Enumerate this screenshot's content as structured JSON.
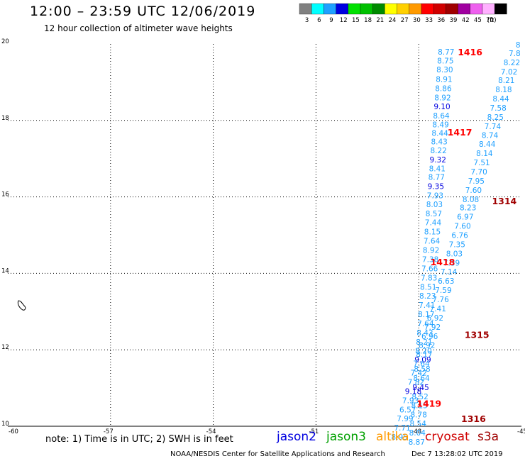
{
  "header": {
    "title": "12:00 – 23:59 UTC 12/06/2019",
    "subtitle": "12 hour collection of altimeter wave heights"
  },
  "legend": {
    "unit": "(ft)",
    "bins": [
      {
        "label": "3",
        "color": "#808080"
      },
      {
        "label": "6",
        "color": "#00ffff"
      },
      {
        "label": "9",
        "color": "#1fa0ff"
      },
      {
        "label": "12",
        "color": "#0000e0"
      },
      {
        "label": "15",
        "color": "#00e000"
      },
      {
        "label": "18",
        "color": "#00c000"
      },
      {
        "label": "21",
        "color": "#008a00"
      },
      {
        "label": "24",
        "color": "#ffff00"
      },
      {
        "label": "27",
        "color": "#ffd000"
      },
      {
        "label": "30",
        "color": "#ff9a00"
      },
      {
        "label": "33",
        "color": "#ff0000"
      },
      {
        "label": "36",
        "color": "#d00000"
      },
      {
        "label": "39",
        "color": "#a00000"
      },
      {
        "label": "42",
        "color": "#a000a0"
      },
      {
        "label": "45",
        "color": "#ee60ee"
      },
      {
        "label": "70",
        "color": "#ffb0ff"
      },
      {
        "label": "",
        "color": "#000000"
      }
    ]
  },
  "footer": {
    "note": "note: 1) Time is in UTC; 2) SWH is in feet",
    "satellites": [
      {
        "name": "jason2",
        "color": "#0000e0"
      },
      {
        "name": "jason3",
        "color": "#00a000"
      },
      {
        "name": "altika",
        "color": "#ff9a00"
      },
      {
        "name": "cryosat",
        "color": "#d00000"
      },
      {
        "name": "s3a",
        "color": "#a00000"
      }
    ],
    "credit": "NOAA/NESDIS Center for Satellite Applications and Research",
    "generated": "Dec  7 13:28:02 UTC 2019"
  },
  "chart_data": {
    "type": "scatter",
    "xlim": [
      -60,
      -45
    ],
    "ylim": [
      10,
      20
    ],
    "x_ticks": [
      "-60",
      "-57",
      "-54",
      "-51",
      "-48",
      "-45"
    ],
    "y_ticks": [
      "10",
      "12",
      "14",
      "16",
      "18",
      "20"
    ],
    "grid": true,
    "colors": {
      "c9": "#1fa0ff",
      "c12": "#0000e0"
    },
    "track_labels": [
      {
        "text": "1416",
        "x": -46.5,
        "y": 19.8,
        "color": "#ff0000"
      },
      {
        "text": "1417",
        "x": -46.8,
        "y": 17.7,
        "color": "#ff0000"
      },
      {
        "text": "1418",
        "x": -47.3,
        "y": 14.3,
        "color": "#ff0000"
      },
      {
        "text": "1419",
        "x": -47.7,
        "y": 10.6,
        "color": "#ff0000"
      },
      {
        "text": "1314",
        "x": -45.5,
        "y": 15.9,
        "color": "#a00000"
      },
      {
        "text": "1315",
        "x": -46.3,
        "y": 12.4,
        "color": "#a00000"
      },
      {
        "text": "1316",
        "x": -46.4,
        "y": 10.2,
        "color": "#a00000"
      }
    ],
    "series": [
      {
        "name": "1416",
        "points": [
          {
            "x": -47.2,
            "y": 19.8,
            "v": "8.77",
            "c": "c9"
          },
          {
            "x": -47.22,
            "y": 19.56,
            "v": "8.75",
            "c": "c9"
          },
          {
            "x": -47.24,
            "y": 19.33,
            "v": "8.30",
            "c": "c9"
          },
          {
            "x": -47.26,
            "y": 19.08,
            "v": "8.91",
            "c": "c9"
          },
          {
            "x": -47.28,
            "y": 18.84,
            "v": "8.86",
            "c": "c9"
          },
          {
            "x": -47.3,
            "y": 18.6,
            "v": "8.92",
            "c": "c9"
          },
          {
            "x": -47.32,
            "y": 18.37,
            "v": "9.10",
            "c": "c12"
          },
          {
            "x": -47.34,
            "y": 18.13,
            "v": "8.64",
            "c": "c9"
          },
          {
            "x": -47.36,
            "y": 17.89,
            "v": "8.49",
            "c": "c9"
          }
        ]
      },
      {
        "name": "1417",
        "points": [
          {
            "x": -47.38,
            "y": 17.67,
            "v": "8.44",
            "c": "c9"
          },
          {
            "x": -47.4,
            "y": 17.45,
            "v": "8.43",
            "c": "c9"
          },
          {
            "x": -47.42,
            "y": 17.22,
            "v": "8.22",
            "c": "c9"
          },
          {
            "x": -47.44,
            "y": 16.98,
            "v": "9.32",
            "c": "c12"
          },
          {
            "x": -47.46,
            "y": 16.74,
            "v": "8.41",
            "c": "c9"
          },
          {
            "x": -47.48,
            "y": 16.52,
            "v": "8.77",
            "c": "c9"
          },
          {
            "x": -47.5,
            "y": 16.28,
            "v": "9.35",
            "c": "c12"
          },
          {
            "x": -47.52,
            "y": 16.04,
            "v": "7.93",
            "c": "c9"
          },
          {
            "x": -47.54,
            "y": 15.81,
            "v": "8.03",
            "c": "c9"
          },
          {
            "x": -47.56,
            "y": 15.57,
            "v": "8.57",
            "c": "c9"
          },
          {
            "x": -47.58,
            "y": 15.33,
            "v": "7.44",
            "c": "c9"
          },
          {
            "x": -47.6,
            "y": 15.09,
            "v": "8.15",
            "c": "c9"
          },
          {
            "x": -47.62,
            "y": 14.85,
            "v": "7.64",
            "c": "c9"
          },
          {
            "x": -47.64,
            "y": 14.61,
            "v": "8.92",
            "c": "c9"
          },
          {
            "x": -47.66,
            "y": 14.37,
            "v": "7.38",
            "c": "c9"
          },
          {
            "x": -47.68,
            "y": 14.13,
            "v": "7.66",
            "c": "c9"
          }
        ]
      },
      {
        "name": "1418",
        "points": [
          {
            "x": -47.7,
            "y": 13.89,
            "v": "7.83",
            "c": "c9"
          },
          {
            "x": -47.72,
            "y": 13.65,
            "v": "8.51",
            "c": "c9"
          },
          {
            "x": -47.74,
            "y": 13.41,
            "v": "8.23",
            "c": "c9"
          },
          {
            "x": -47.76,
            "y": 13.17,
            "v": "7.41",
            "c": "c9"
          },
          {
            "x": -47.78,
            "y": 12.93,
            "v": "8.17",
            "c": "c9"
          },
          {
            "x": -47.8,
            "y": 12.69,
            "v": "7.64",
            "c": "c9"
          },
          {
            "x": -47.82,
            "y": 12.45,
            "v": "8.43",
            "c": "c9"
          },
          {
            "x": -47.84,
            "y": 12.21,
            "v": "8.21",
            "c": "c9"
          },
          {
            "x": -47.86,
            "y": 11.98,
            "v": "8.20",
            "c": "c9"
          },
          {
            "x": -47.88,
            "y": 11.74,
            "v": "9.09",
            "c": "c12"
          },
          {
            "x": -47.9,
            "y": 11.5,
            "v": "8.58",
            "c": "c9"
          },
          {
            "x": -47.92,
            "y": 11.26,
            "v": "8.64",
            "c": "c9"
          },
          {
            "x": -47.94,
            "y": 11.02,
            "v": "9.45",
            "c": "c12"
          },
          {
            "x": -47.96,
            "y": 10.78,
            "v": "8.52",
            "c": "c9"
          },
          {
            "x": -47.98,
            "y": 10.55,
            "v": "8.15",
            "c": "c9"
          },
          {
            "x": -48.0,
            "y": 10.31,
            "v": "8.78",
            "c": "c9"
          },
          {
            "x": -48.02,
            "y": 10.07,
            "v": "8.54",
            "c": "c9"
          }
        ]
      },
      {
        "name": "1419",
        "points": [
          {
            "x": -48.04,
            "y": 9.83,
            "v": "8.04",
            "c": "c9"
          },
          {
            "x": -48.06,
            "y": 9.59,
            "v": "8.87",
            "c": "c9"
          }
        ]
      },
      {
        "name": "1314",
        "points": [
          {
            "x": -45.1,
            "y": 19.98,
            "v": "8",
            "c": "c9"
          },
          {
            "x": -45.2,
            "y": 19.76,
            "v": "7.8",
            "c": "c9"
          },
          {
            "x": -45.28,
            "y": 19.52,
            "v": "8.22",
            "c": "c9"
          },
          {
            "x": -45.36,
            "y": 19.28,
            "v": "7.02",
            "c": "c9"
          },
          {
            "x": -45.44,
            "y": 19.05,
            "v": "8.21",
            "c": "c9"
          },
          {
            "x": -45.52,
            "y": 18.81,
            "v": "8.18",
            "c": "c9"
          },
          {
            "x": -45.6,
            "y": 18.57,
            "v": "8.44",
            "c": "c9"
          },
          {
            "x": -45.68,
            "y": 18.33,
            "v": "7.58",
            "c": "c9"
          },
          {
            "x": -45.76,
            "y": 18.09,
            "v": "8.25",
            "c": "c9"
          },
          {
            "x": -45.84,
            "y": 17.85,
            "v": "7.74",
            "c": "c9"
          },
          {
            "x": -45.92,
            "y": 17.62,
            "v": "8.74",
            "c": "c9"
          },
          {
            "x": -46.0,
            "y": 17.38,
            "v": "8.44",
            "c": "c9"
          },
          {
            "x": -46.08,
            "y": 17.14,
            "v": "8.14",
            "c": "c9"
          },
          {
            "x": -46.16,
            "y": 16.9,
            "v": "7.51",
            "c": "c9"
          },
          {
            "x": -46.24,
            "y": 16.66,
            "v": "7.70",
            "c": "c9"
          },
          {
            "x": -46.32,
            "y": 16.42,
            "v": "7.95",
            "c": "c9"
          },
          {
            "x": -46.4,
            "y": 16.18,
            "v": "7.60",
            "c": "c9"
          },
          {
            "x": -46.48,
            "y": 15.94,
            "v": "8.08",
            "c": "c9"
          }
        ]
      },
      {
        "name": "1315",
        "points": [
          {
            "x": -46.56,
            "y": 15.72,
            "v": "8.23",
            "c": "c9"
          },
          {
            "x": -46.64,
            "y": 15.48,
            "v": "6.97",
            "c": "c9"
          },
          {
            "x": -46.72,
            "y": 15.24,
            "v": "7.60",
            "c": "c9"
          },
          {
            "x": -46.8,
            "y": 15.0,
            "v": "6.76",
            "c": "c9"
          },
          {
            "x": -46.88,
            "y": 14.76,
            "v": "7.35",
            "c": "c9"
          },
          {
            "x": -46.96,
            "y": 14.52,
            "v": "8.03",
            "c": "c9"
          },
          {
            "x": -47.04,
            "y": 14.28,
            "v": "7.39",
            "c": "c9"
          },
          {
            "x": -47.12,
            "y": 14.04,
            "v": "7.14",
            "c": "c9"
          },
          {
            "x": -47.2,
            "y": 13.8,
            "v": "6.63",
            "c": "c9"
          },
          {
            "x": -47.28,
            "y": 13.56,
            "v": "7.59",
            "c": "c9"
          },
          {
            "x": -47.36,
            "y": 13.32,
            "v": "7.76",
            "c": "c9"
          },
          {
            "x": -47.44,
            "y": 13.08,
            "v": "7.41",
            "c": "c9"
          },
          {
            "x": -47.52,
            "y": 12.84,
            "v": "6.92",
            "c": "c9"
          },
          {
            "x": -47.6,
            "y": 12.6,
            "v": "7.92",
            "c": "c9"
          },
          {
            "x": -47.68,
            "y": 12.36,
            "v": "6.96",
            "c": "c9"
          }
        ]
      },
      {
        "name": "1316",
        "points": [
          {
            "x": -47.76,
            "y": 12.12,
            "v": "8.92",
            "c": "c9"
          },
          {
            "x": -47.84,
            "y": 11.88,
            "v": "8.17",
            "c": "c9"
          },
          {
            "x": -47.92,
            "y": 11.64,
            "v": "7.64",
            "c": "c9"
          },
          {
            "x": -48.0,
            "y": 11.4,
            "v": "7.42",
            "c": "c9"
          },
          {
            "x": -48.08,
            "y": 11.16,
            "v": "7.82",
            "c": "c9"
          },
          {
            "x": -48.16,
            "y": 10.92,
            "v": "9.18",
            "c": "c12"
          },
          {
            "x": -48.24,
            "y": 10.68,
            "v": "7.93",
            "c": "c9"
          },
          {
            "x": -48.32,
            "y": 10.44,
            "v": "6.57",
            "c": "c9"
          },
          {
            "x": -48.4,
            "y": 10.2,
            "v": "7.99",
            "c": "c9"
          },
          {
            "x": -48.48,
            "y": 9.96,
            "v": "7.71",
            "c": "c9"
          },
          {
            "x": -48.56,
            "y": 9.72,
            "v": "8.95",
            "c": "c9"
          }
        ]
      }
    ]
  }
}
